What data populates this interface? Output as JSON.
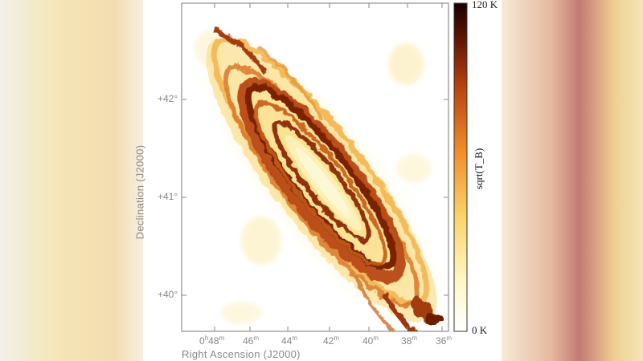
{
  "figure": {
    "x_axis_label": "Right Ascension (J2000)",
    "y_axis_label": "Declination (J2000)",
    "x_ticks": [
      {
        "label": "0",
        "sup": "h",
        "tail": "48",
        "tail_sup": "m"
      },
      {
        "label": "46",
        "sup": "m"
      },
      {
        "label": "44",
        "sup": "m"
      },
      {
        "label": "42",
        "sup": "m"
      },
      {
        "label": "40",
        "sup": "m"
      },
      {
        "label": "38",
        "sup": "m"
      },
      {
        "label": "36",
        "sup": "m"
      }
    ],
    "y_ticks": [
      {
        "label": "+42°"
      },
      {
        "label": "+41°"
      },
      {
        "label": "+40°"
      }
    ],
    "colorbar": {
      "max_label": "120 K",
      "min_label": "0 K",
      "title": "sqrt(T_B)"
    }
  },
  "colors": {
    "background": "#ffffff",
    "axis": "#8a8a8a",
    "cmap_low": "#fffde0",
    "cmap_mid": "#f0a030",
    "cmap_high": "#3a0500"
  }
}
